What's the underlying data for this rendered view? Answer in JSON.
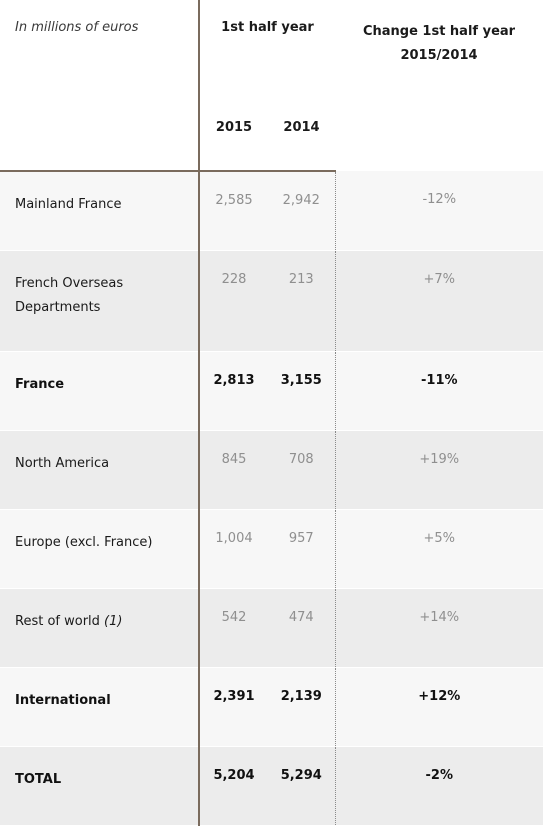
{
  "header": {
    "unit_label": "In millions of euros",
    "half_year_label": "1st half year",
    "change_label_line1": "Change 1st half year",
    "change_label_line2": "2015/2014",
    "year_a": "2015",
    "year_b": "2014"
  },
  "rows": [
    {
      "label": "Mainland France",
      "note": "",
      "v2015": "2,585",
      "v2014": "2,942",
      "change": "-12%",
      "bold": false
    },
    {
      "label": "French Overseas",
      "label_line2": "Departments",
      "note": "",
      "v2015": "228",
      "v2014": "213",
      "change": "+7%",
      "bold": false
    },
    {
      "label": "France",
      "note": "",
      "v2015": "2,813",
      "v2014": "3,155",
      "change": "-11%",
      "bold": true
    },
    {
      "label": "North America",
      "note": "",
      "v2015": "845",
      "v2014": "708",
      "change": "+19%",
      "bold": false
    },
    {
      "label": "Europe (excl. France)",
      "note": "",
      "v2015": "1,004",
      "v2014": "957",
      "change": "+5%",
      "bold": false
    },
    {
      "label": "Rest of world",
      "note": "(1)",
      "v2015": "542",
      "v2014": "474",
      "change": "+14%",
      "bold": false
    },
    {
      "label": "International",
      "note": "",
      "v2015": "2,391",
      "v2014": "2,139",
      "change": "+12%",
      "bold": true
    },
    {
      "label": "TOTAL",
      "note": "",
      "v2015": "5,204",
      "v2014": "5,294",
      "change": "-2%",
      "bold": true
    }
  ]
}
